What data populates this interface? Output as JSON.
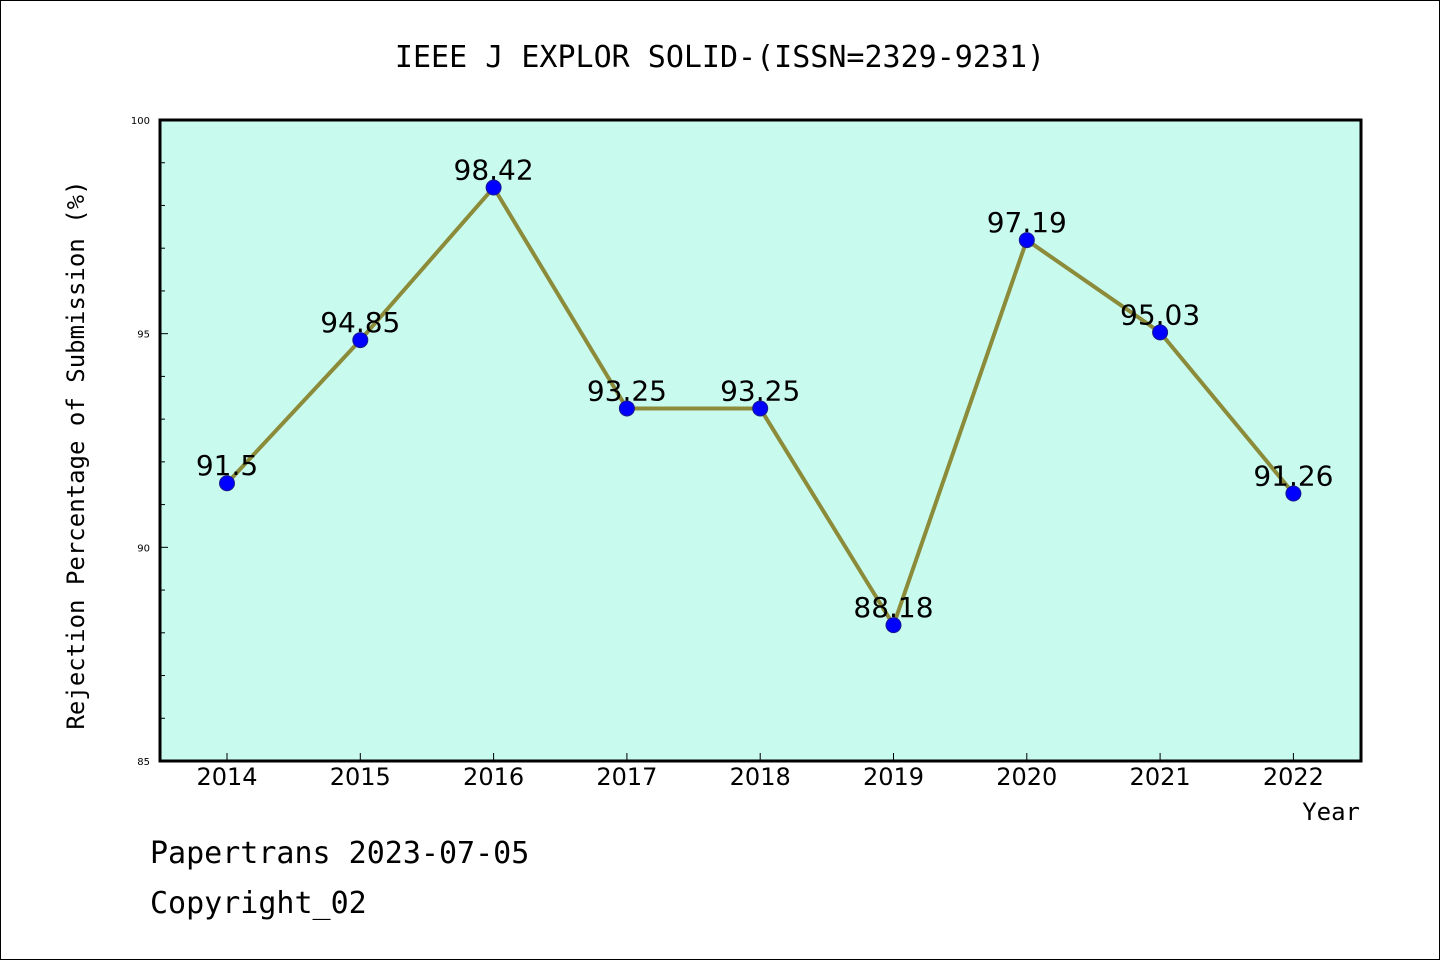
{
  "chart_data": {
    "type": "line",
    "title": "IEEE J EXPLOR SOLID-(ISSN=2329-9231)",
    "xlabel": "Year",
    "ylabel": "Rejection Percentage of Submission (%)",
    "categories": [
      "2014",
      "2015",
      "2016",
      "2017",
      "2018",
      "2019",
      "2020",
      "2021",
      "2022"
    ],
    "series": [
      {
        "values": [
          91.5,
          94.85,
          98.42,
          93.25,
          93.25,
          88.18,
          97.19,
          95.03,
          91.26
        ],
        "data_labels": [
          "91.5",
          "94.85",
          "98.42",
          "93.25",
          "93.25",
          "88.18",
          "97.19",
          "95.03",
          "91.26"
        ]
      }
    ],
    "ylim": [
      85,
      100
    ],
    "yticks": [
      "85",
      "90",
      "95",
      "100"
    ],
    "grid": false,
    "legend": "none",
    "colors": {
      "plot_background": "#c8fbee",
      "line": "#8b8b3a",
      "marker": "#0000ff"
    }
  },
  "footer": {
    "line1": "Papertrans 2023-07-05",
    "line2": "Copyright_02"
  }
}
